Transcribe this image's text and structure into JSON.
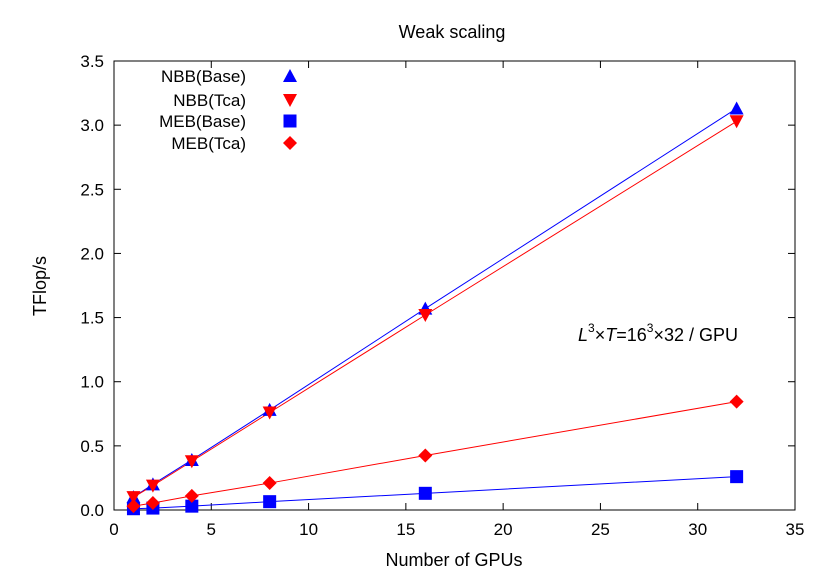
{
  "chart_data": {
    "type": "line",
    "title": "Weak scaling",
    "xlabel": "Number of GPUs",
    "ylabel": "TFlop/s",
    "xlim": [
      0,
      35
    ],
    "ylim": [
      0,
      3.5
    ],
    "x_ticks": [
      "0",
      "5",
      "10",
      "15",
      "20",
      "25",
      "30",
      "35"
    ],
    "y_ticks": [
      "0.0",
      "0.5",
      "1.0",
      "1.5",
      "2.0",
      "2.5",
      "3.0",
      "3.5"
    ],
    "x": [
      1,
      2,
      4,
      8,
      16,
      32
    ],
    "series": [
      {
        "name": "NBB(Base)",
        "color": "#0000ff",
        "marker": "triangle-up",
        "values": [
          0.1,
          0.2,
          0.39,
          0.78,
          1.57,
          3.13
        ]
      },
      {
        "name": "NBB(Tca)",
        "color": "#ff0000",
        "marker": "triangle-down",
        "values": [
          0.1,
          0.19,
          0.38,
          0.76,
          1.52,
          3.03
        ]
      },
      {
        "name": "MEB(Base)",
        "color": "#0000ff",
        "marker": "square",
        "values": [
          0.01,
          0.015,
          0.03,
          0.065,
          0.13,
          0.26
        ]
      },
      {
        "name": "MEB(Tca)",
        "color": "#ff0000",
        "marker": "diamond",
        "values": [
          0.03,
          0.055,
          0.11,
          0.21,
          0.425,
          0.845
        ]
      }
    ],
    "annotation": {
      "L": "L",
      "exp1": "3",
      "times1": "×",
      "T": "T",
      "eq": "=16",
      "exp2": "3",
      "rest": "×32 / GPU"
    },
    "legend_position": "top-left",
    "grid": false
  }
}
